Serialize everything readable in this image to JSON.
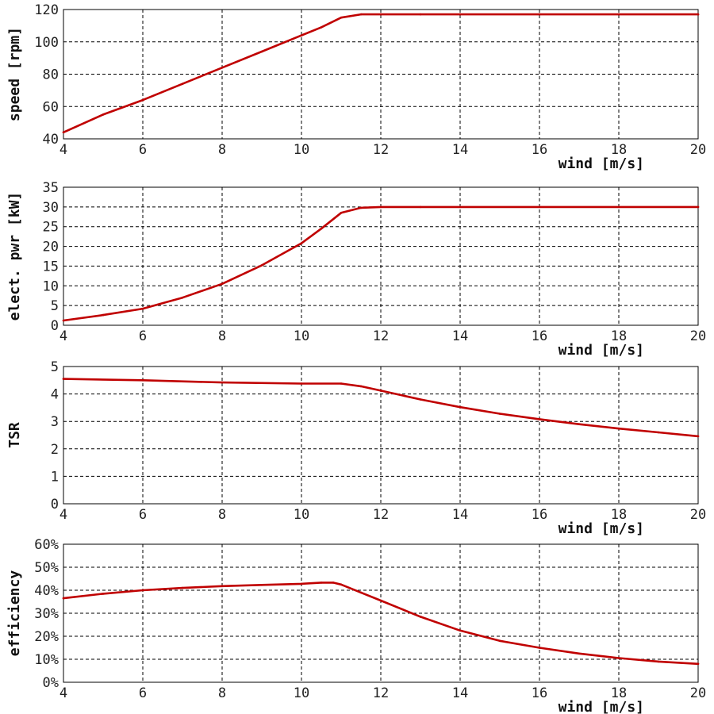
{
  "colors": {
    "series": "#c00000",
    "grid": "#000000",
    "background": "#ffffff"
  },
  "chart_data": [
    {
      "type": "line",
      "xlabel": "wind [m/s]",
      "ylabel": "speed [rpm]",
      "xlim": [
        4,
        20
      ],
      "ylim": [
        40,
        120
      ],
      "x_ticks": [
        "4",
        "6",
        "8",
        "10",
        "12",
        "14",
        "16",
        "18",
        "20"
      ],
      "y_ticks": [
        "40",
        "60",
        "80",
        "100",
        "120"
      ],
      "grid": true,
      "series": [
        {
          "x": [
            4,
            5,
            6,
            7,
            8,
            9,
            10,
            10.5,
            11,
            11.5,
            12,
            13,
            14,
            16,
            18,
            20
          ],
          "y": [
            44,
            55,
            64,
            74,
            84,
            94,
            104,
            109,
            115,
            117,
            117,
            117,
            117,
            117,
            117,
            117
          ]
        }
      ]
    },
    {
      "type": "line",
      "xlabel": "wind [m/s]",
      "ylabel": "elect. pwr [kW]",
      "xlim": [
        4,
        20
      ],
      "ylim": [
        0,
        35
      ],
      "x_ticks": [
        "4",
        "6",
        "8",
        "10",
        "12",
        "14",
        "16",
        "18",
        "20"
      ],
      "y_ticks": [
        "0",
        "5",
        "10",
        "15",
        "20",
        "25",
        "30",
        "35"
      ],
      "grid": true,
      "series": [
        {
          "x": [
            4,
            5,
            6,
            7,
            8,
            9,
            10,
            10.5,
            11,
            11.5,
            12,
            13,
            14,
            16,
            18,
            20
          ],
          "y": [
            1.2,
            2.6,
            4.2,
            7,
            10.5,
            15.2,
            20.8,
            24.5,
            28.5,
            29.8,
            30,
            30,
            30,
            30,
            30,
            30
          ]
        }
      ]
    },
    {
      "type": "line",
      "xlabel": "wind [m/s]",
      "ylabel": "TSR",
      "xlim": [
        4,
        20
      ],
      "ylim": [
        0,
        5
      ],
      "x_ticks": [
        "4",
        "6",
        "8",
        "10",
        "12",
        "14",
        "16",
        "18",
        "20"
      ],
      "y_ticks": [
        "0",
        "1",
        "2",
        "3",
        "4",
        "5"
      ],
      "grid": true,
      "series": [
        {
          "x": [
            4,
            6,
            8,
            10,
            11,
            11.5,
            12,
            13,
            14,
            15,
            16,
            17,
            18,
            19,
            20
          ],
          "y": [
            4.55,
            4.5,
            4.42,
            4.38,
            4.38,
            4.28,
            4.12,
            3.8,
            3.52,
            3.28,
            3.08,
            2.9,
            2.74,
            2.6,
            2.46
          ]
        }
      ]
    },
    {
      "type": "line",
      "xlabel": "wind [m/s]",
      "ylabel": "efficiency",
      "xlim": [
        4,
        20
      ],
      "ylim": [
        0,
        60
      ],
      "x_ticks": [
        "4",
        "6",
        "8",
        "10",
        "12",
        "14",
        "16",
        "18",
        "20"
      ],
      "y_ticks": [
        "0%",
        "10%",
        "20%",
        "30%",
        "40%",
        "50%",
        "60%"
      ],
      "grid": true,
      "series": [
        {
          "x": [
            4,
            5,
            6,
            7,
            8,
            9,
            10,
            10.5,
            10.8,
            11,
            11.5,
            12,
            13,
            14,
            15,
            16,
            17,
            18,
            19,
            20
          ],
          "y": [
            36.5,
            38.5,
            40,
            41,
            41.8,
            42.3,
            42.8,
            43.3,
            43.3,
            42.5,
            39,
            35.5,
            28.5,
            22.5,
            18,
            15,
            12.5,
            10.5,
            9,
            8
          ]
        }
      ]
    }
  ]
}
